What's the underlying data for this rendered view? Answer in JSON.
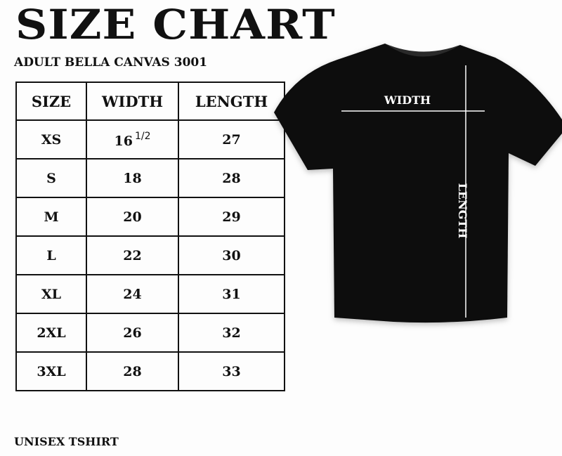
{
  "title": "SIZE CHART",
  "subtitle": "ADULT BELLA CANVAS 3001",
  "table": {
    "headers": [
      "SIZE",
      "WIDTH",
      "LENGTH"
    ],
    "rows": [
      {
        "size": "XS",
        "width": "16",
        "width_fraction": "1/2",
        "length": "27"
      },
      {
        "size": "S",
        "width": "18",
        "length": "28"
      },
      {
        "size": "M",
        "width": "20",
        "length": "29"
      },
      {
        "size": "L",
        "width": "22",
        "length": "30"
      },
      {
        "size": "XL",
        "width": "24",
        "length": "31"
      },
      {
        "size": "2XL",
        "width": "26",
        "length": "32"
      },
      {
        "size": "3XL",
        "width": "28",
        "length": "33"
      }
    ]
  },
  "shirt": {
    "width_label": "WIDTH",
    "length_label": "LENGTH",
    "color": "#0d0d0d"
  },
  "footer": "UNISEX TSHIRT"
}
